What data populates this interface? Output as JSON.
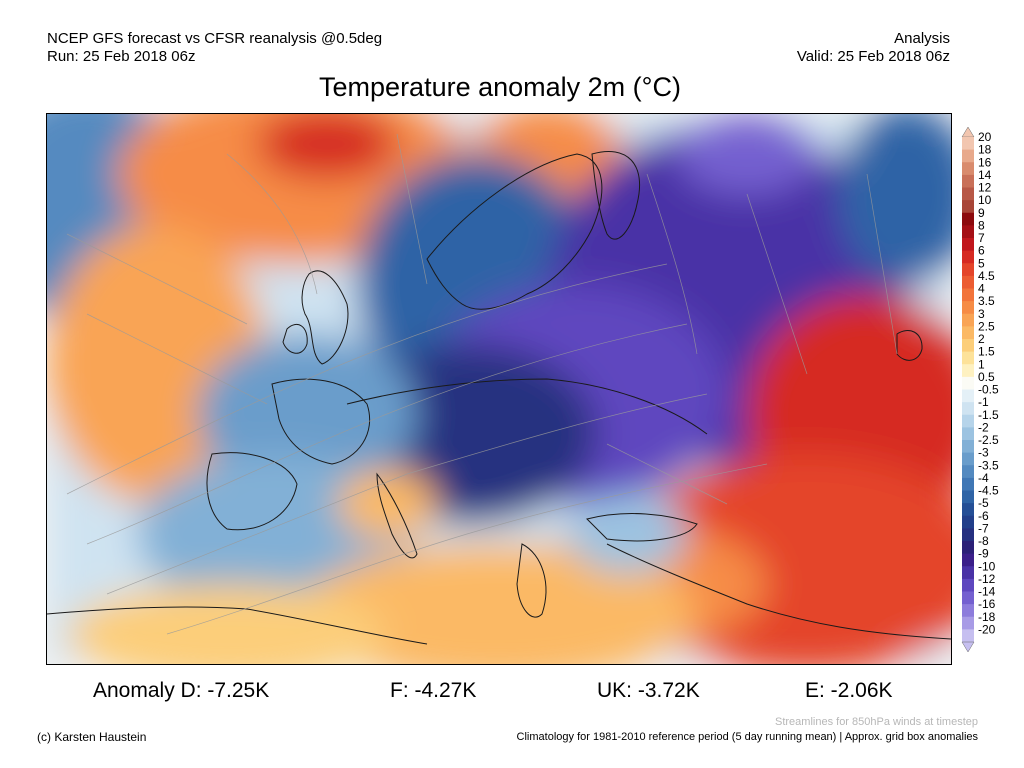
{
  "header": {
    "source": "NCEP GFS forecast vs CFSR reanalysis @0.5deg",
    "run": "Run: 25 Feb 2018 06z",
    "type": "Analysis",
    "valid": "Valid: 25 Feb 2018 06z"
  },
  "title": "Temperature anomaly 2m (°C)",
  "legend": {
    "labels": [
      "20",
      "18",
      "16",
      "14",
      "12",
      "10",
      "9",
      "8",
      "7",
      "6",
      "5",
      "4.5",
      "4",
      "3.5",
      "3",
      "2.5",
      "2",
      "1.5",
      "1",
      "0.5",
      "-0.5",
      "-1",
      "-1.5",
      "-2",
      "-2.5",
      "-3",
      "-3.5",
      "-4",
      "-4.5",
      "-5",
      "-6",
      "-7",
      "-8",
      "-9",
      "-10",
      "-12",
      "-14",
      "-16",
      "-18",
      "-20"
    ],
    "colors": [
      "#f2c6b0",
      "#e8a98b",
      "#d98b6d",
      "#c97058",
      "#b85846",
      "#a84537",
      "#8c0a0d",
      "#a50f15",
      "#c1161c",
      "#d62a22",
      "#e4452a",
      "#ec5c32",
      "#f2743b",
      "#f68c46",
      "#f9a455",
      "#fbb965",
      "#fcce7a",
      "#fde29a",
      "#fef1c1",
      "#fbfbf5",
      "#e4f0f7",
      "#cfe3f1",
      "#b6d4ea",
      "#9cc3e1",
      "#82b0d6",
      "#6a9dcb",
      "#548ac0",
      "#4077b5",
      "#2f64a6",
      "#254f96",
      "#223f8a",
      "#253080",
      "#2b2077",
      "#3b1f8a",
      "#4a32a6",
      "#5e47bf",
      "#7460d0",
      "#8d7cdc",
      "#a89be6",
      "#c6bff0"
    ]
  },
  "anomalies": {
    "D": "Anomaly D: -7.25K",
    "F": "F: -4.27K",
    "UK": "UK: -3.72K",
    "E": "E: -2.06K"
  },
  "footer": {
    "credit": "(c) Karsten Haustein",
    "streamlines": "Streamlines for 850hPa winds at timestep",
    "climatology": "Climatology for 1981-2010 reference period (5 day running mean) | Approx. grid box anomalies"
  },
  "colors": {
    "deep_cold": "#4a32a6",
    "cold": "#2f64a6",
    "mild": "#fbfbf5",
    "warm": "#f2743b",
    "hot": "#c1161c"
  }
}
